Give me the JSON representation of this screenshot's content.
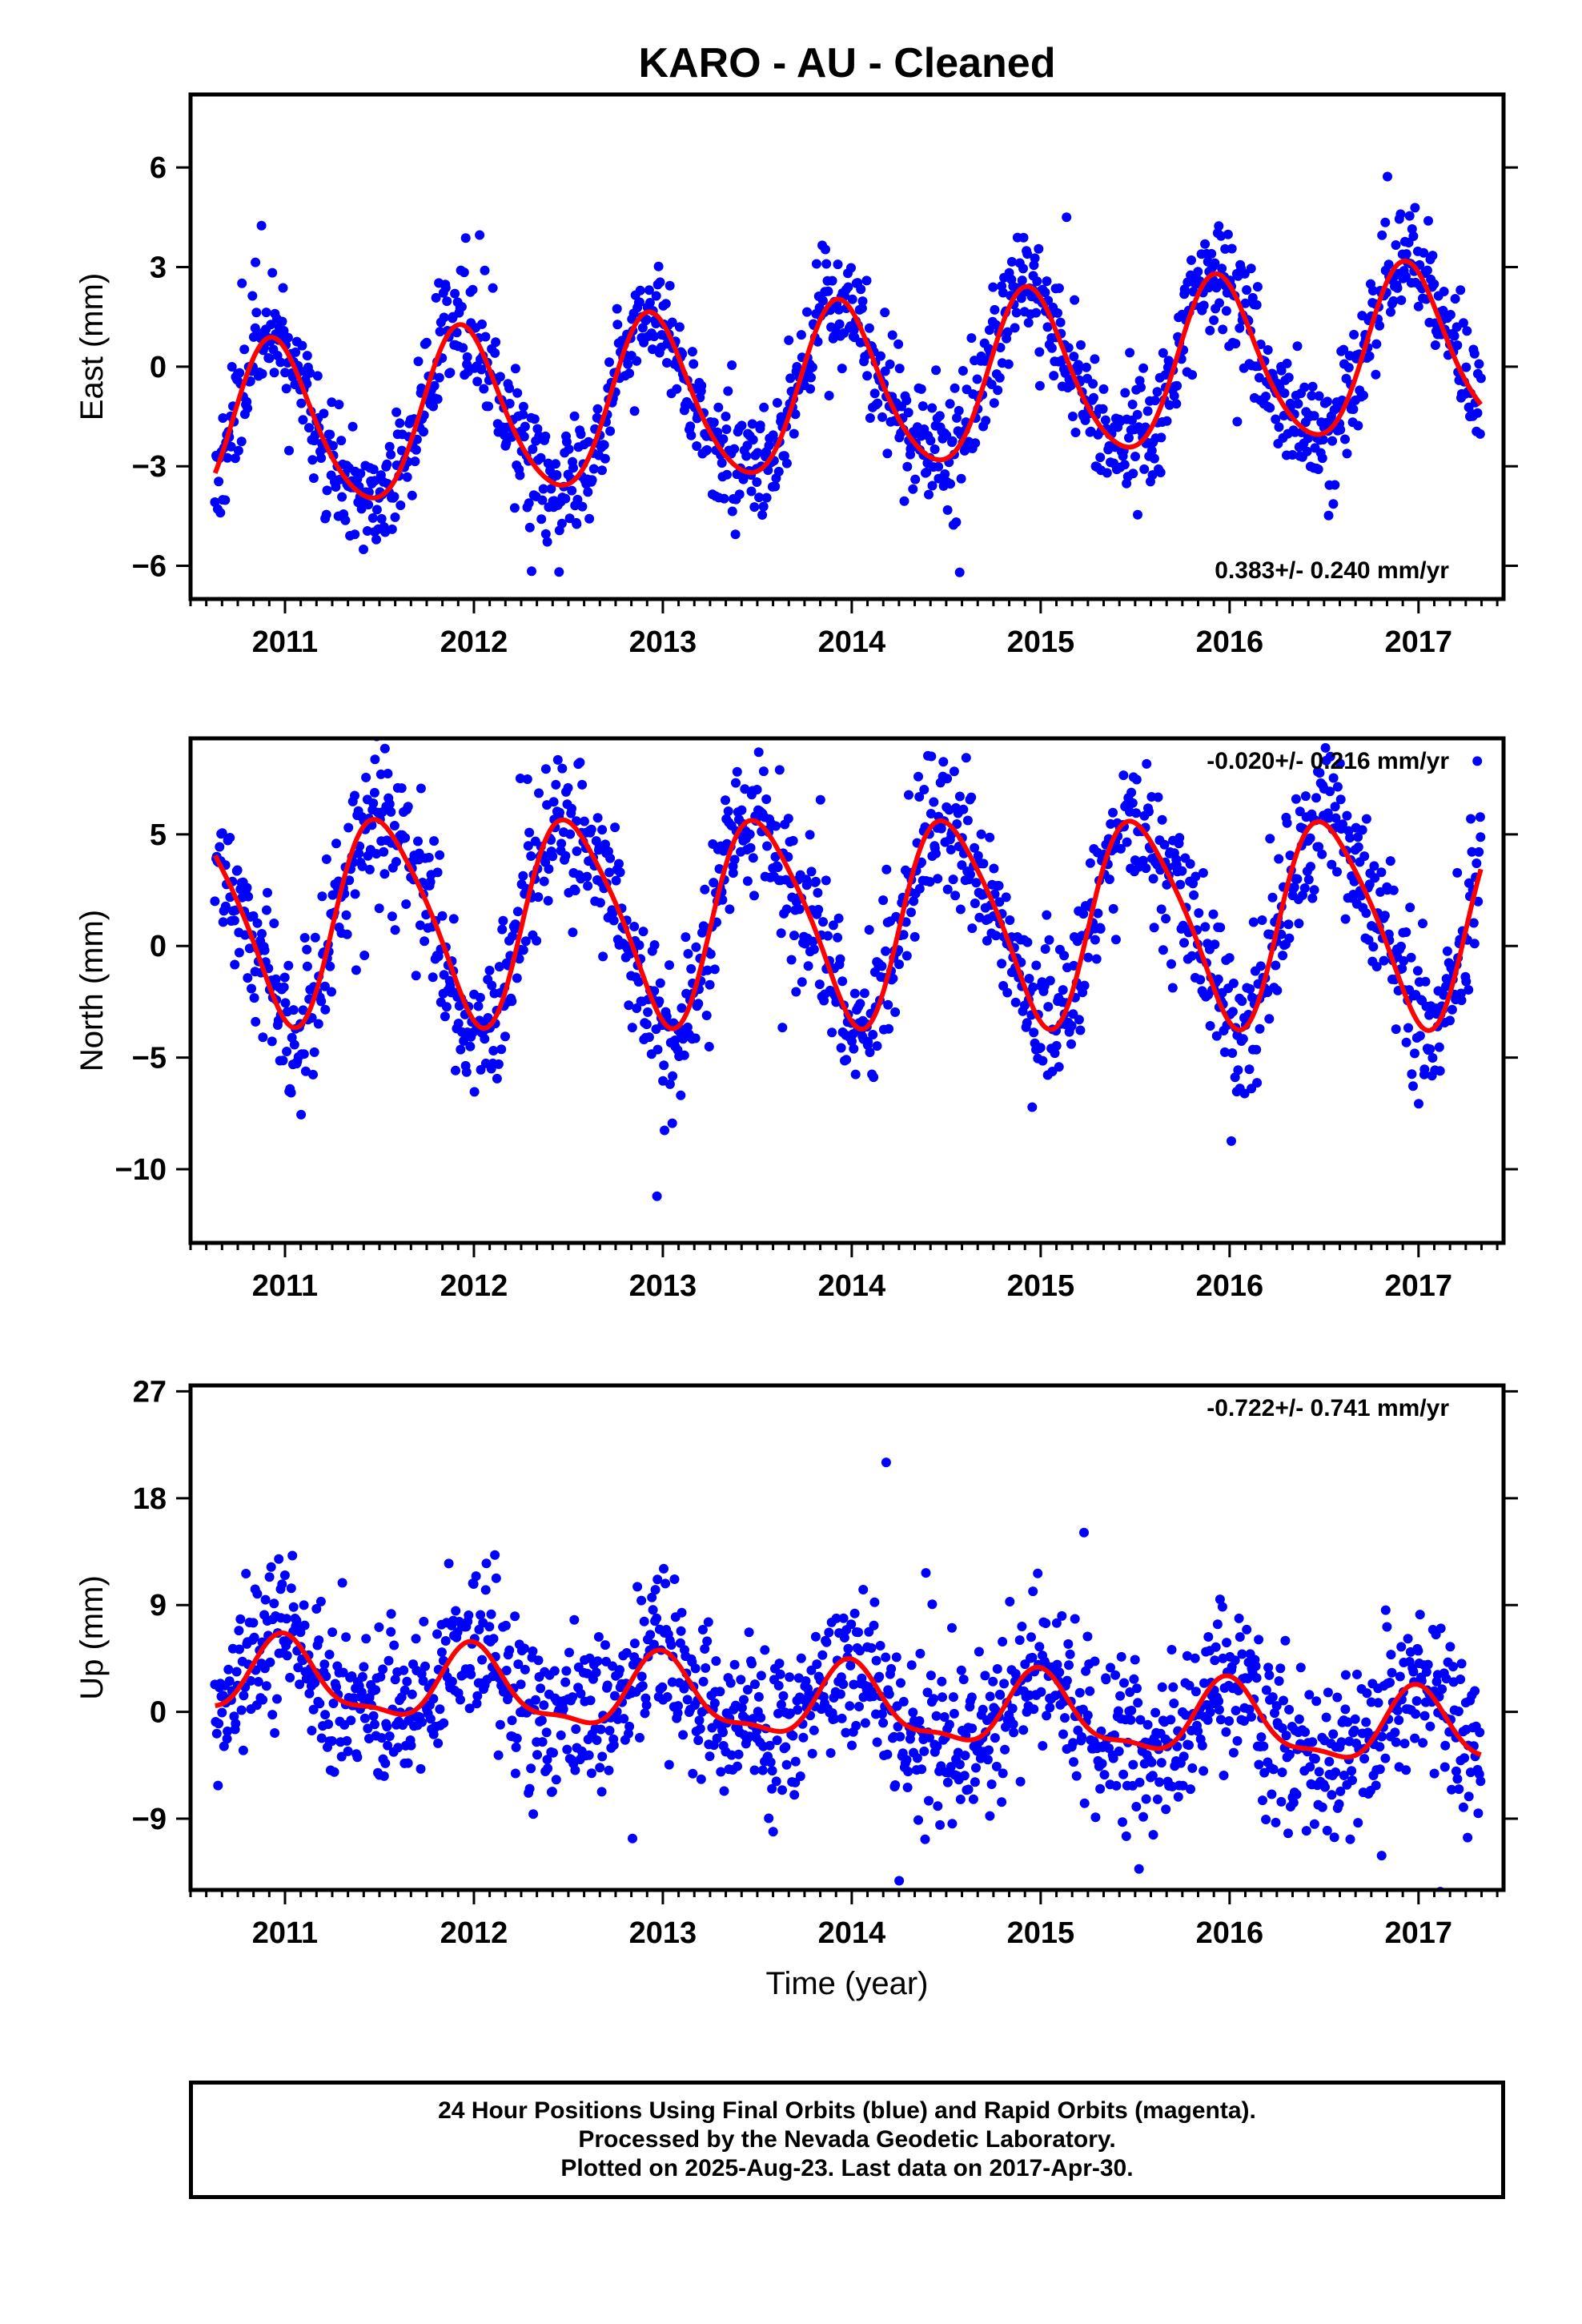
{
  "title": "KARO  - AU - Cleaned",
  "footer": {
    "line1": "24 Hour Positions Using Final Orbits (blue) and Rapid Orbits (magenta).",
    "line2": "Processed by the Nevada Geodetic Laboratory.",
    "line3": "Plotted on 2025-Aug-23. Last data on 2017-Apr-30."
  },
  "colors": {
    "points": "#0000ff",
    "fit": "#ff0000",
    "frame": "#000000"
  },
  "chart_data": [
    {
      "type": "scatter",
      "ylabel": "East (mm)",
      "xlabel": "",
      "rate_text": "0.383+/- 0.240 mm/yr",
      "xlim": [
        2010.5,
        2017.45
      ],
      "ylim": [
        -7.0,
        8.2
      ],
      "xticks": [
        2011,
        2012,
        2013,
        2014,
        2015,
        2016,
        2017
      ],
      "xtick_labels": [
        "2011",
        "2012",
        "2013",
        "2014",
        "2015",
        "2016",
        "2017"
      ],
      "yticks": [
        -6,
        -3,
        0,
        3,
        6
      ],
      "ytick_labels": [
        "−6",
        "−3",
        "0",
        "3",
        "6"
      ],
      "model": {
        "offset": -0.7,
        "trend": 0.383,
        "t0": 2014.0,
        "annual_amp": 2.5,
        "annual_peak": 2010.94,
        "semi_amp": 0.3,
        "semi_phase": 0.6
      },
      "scatter": {
        "n": 1400,
        "t_start": 2010.63,
        "t_end": 2017.33,
        "sigma": 0.9,
        "seed": 11
      },
      "series": [
        {
          "name": "Final Orbits",
          "kind": "points"
        },
        {
          "name": "Fit",
          "kind": "line"
        }
      ]
    },
    {
      "type": "scatter",
      "ylabel": "North (mm)",
      "xlabel": "",
      "rate_text": "-0.020+/- 0.216 mm/yr",
      "xlim": [
        2010.5,
        2017.45
      ],
      "ylim": [
        -13.3,
        9.3
      ],
      "xticks": [
        2011,
        2012,
        2013,
        2014,
        2015,
        2016,
        2017
      ],
      "xtick_labels": [
        "2011",
        "2012",
        "2013",
        "2014",
        "2015",
        "2016",
        "2017"
      ],
      "yticks": [
        -10,
        -5,
        0,
        5
      ],
      "ytick_labels": [
        "−10",
        "−5",
        "0",
        "5"
      ],
      "model": {
        "offset": 1.2,
        "trend": -0.02,
        "t0": 2014.0,
        "annual_amp": 4.5,
        "annual_peak": 2010.52,
        "semi_amp": 0.7,
        "semi_phase": 2.0
      },
      "scatter": {
        "n": 1400,
        "t_start": 2010.63,
        "t_end": 2017.33,
        "sigma": 1.6,
        "seed": 23
      },
      "series": [
        {
          "name": "Final Orbits",
          "kind": "points"
        },
        {
          "name": "Fit",
          "kind": "line"
        }
      ]
    },
    {
      "type": "scatter",
      "ylabel": "Up (mm)",
      "xlabel": "Time (year)",
      "rate_text": "-0.722+/- 0.741 mm/yr",
      "xlim": [
        2010.5,
        2017.45
      ],
      "ylim": [
        -15.0,
        27.5
      ],
      "xticks": [
        2011,
        2012,
        2013,
        2014,
        2015,
        2016,
        2017
      ],
      "xtick_labels": [
        "2011",
        "2012",
        "2013",
        "2014",
        "2015",
        "2016",
        "2017"
      ],
      "yticks": [
        -9,
        0,
        9,
        18,
        27
      ],
      "ytick_labels": [
        "−9",
        "0",
        "9",
        "18",
        "27"
      ],
      "model": {
        "offset": 0.5,
        "trend": -0.722,
        "t0": 2014.0,
        "annual_amp": 3.0,
        "annual_peak": 2011.0,
        "semi_amp": 1.0,
        "semi_phase": 0.3
      },
      "scatter": {
        "n": 1400,
        "t_start": 2010.63,
        "t_end": 2017.33,
        "sigma": 3.3,
        "seed": 37
      },
      "series": [
        {
          "name": "Final Orbits",
          "kind": "points"
        },
        {
          "name": "Fit",
          "kind": "line"
        }
      ]
    }
  ]
}
